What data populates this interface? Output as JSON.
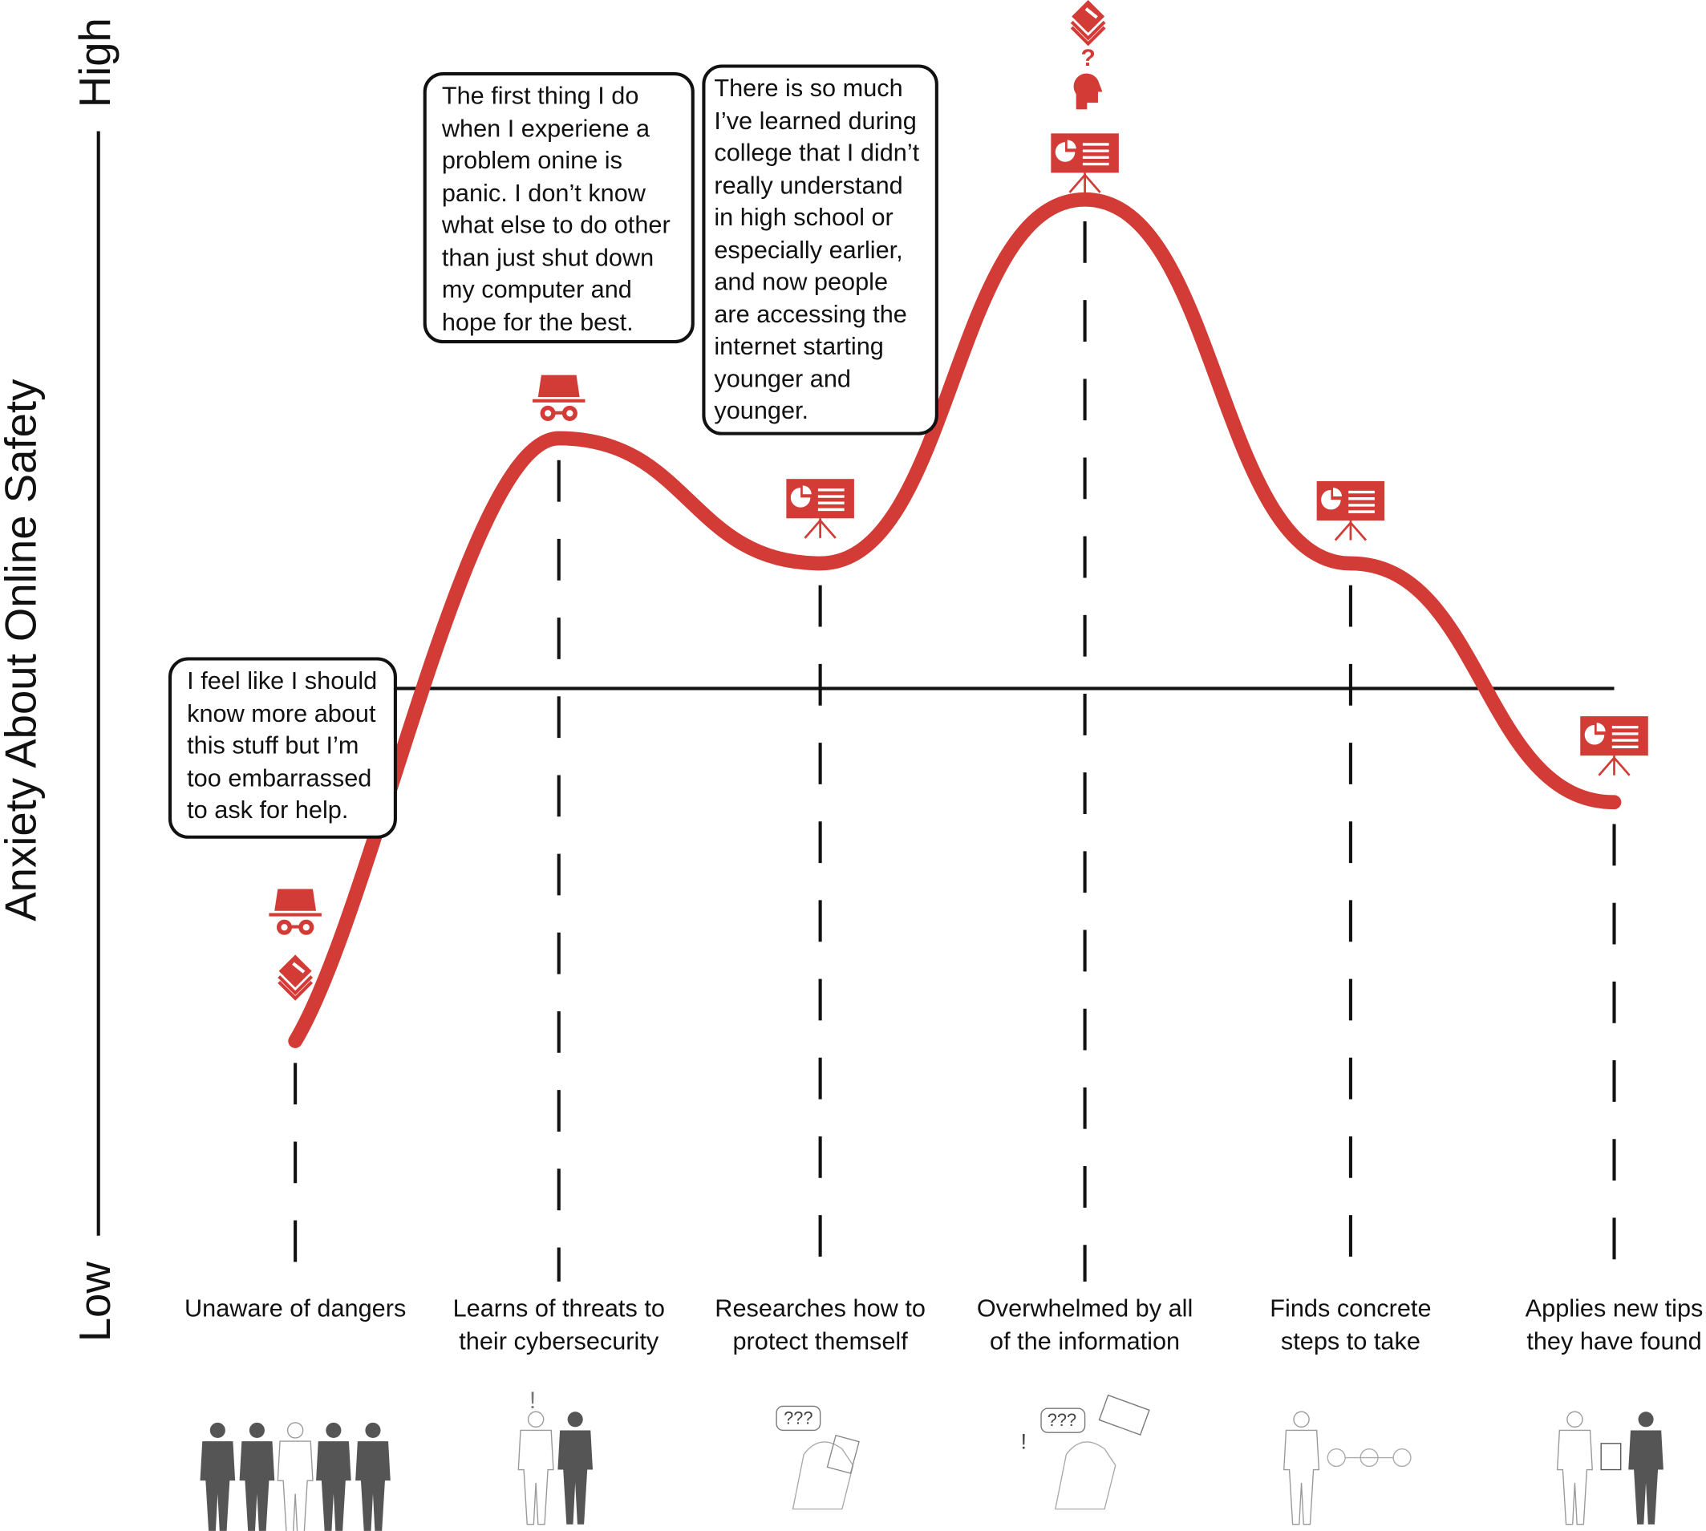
{
  "chart_data": {
    "type": "line",
    "title": "",
    "ylabel": "Anxiety About Online Safety",
    "y_low_label": "Low",
    "y_high_label": "High",
    "ylim": [
      0,
      1
    ],
    "reference_line": 0.51,
    "grid": false,
    "series_color": "#d23b36",
    "categories": [
      "Unaware of dangers",
      "Learns of threats to their cybersecurity",
      "Researches how to protect themself",
      "Overwhelmed by all of the information",
      "Finds concrete steps to take",
      "Applies new tips they have found"
    ],
    "category_lines": [
      [
        "Unaware of dangers"
      ],
      [
        "Learns of threats to",
        "their cybersecurity"
      ],
      [
        "Researches how to",
        "protect themself"
      ],
      [
        "Overwhelmed by all",
        "of the information"
      ],
      [
        "Finds concrete",
        "steps to take"
      ],
      [
        "Applies new tips",
        "they have found"
      ]
    ],
    "values": [
      0.2,
      0.73,
      0.62,
      0.94,
      0.62,
      0.41
    ],
    "stage_icons": [
      [
        "spy-icon",
        "books-icon"
      ],
      [
        "spy-icon"
      ],
      [
        "presentation-icon"
      ],
      [
        "books-icon",
        "question-head-icon",
        "presentation-icon"
      ],
      [
        "presentation-icon"
      ],
      [
        "presentation-icon"
      ]
    ],
    "illustrations": [
      "group-of-people",
      "person-alert-with-peer",
      "person-confused-reading",
      "person-overwhelmed",
      "person-following-steps",
      "person-with-lock-and-peer"
    ]
  },
  "callouts": [
    {
      "lines": [
        "I feel like I should",
        "know more about",
        "this stuff but I’m",
        "too embarrassed",
        "to ask for help."
      ]
    },
    {
      "lines": [
        "The first thing I do",
        "when I experiene a",
        "problem onine is",
        "panic. I don’t know",
        "what else to do other",
        "than just shut down",
        "my computer and",
        "hope for the best."
      ]
    },
    {
      "lines": [
        "There is so much",
        "I’ve learned during",
        "college that I didn’t",
        "really understand",
        "in high school or",
        "especially earlier,",
        "and now people",
        "are accessing the",
        "internet starting",
        "younger and",
        "younger."
      ]
    }
  ]
}
